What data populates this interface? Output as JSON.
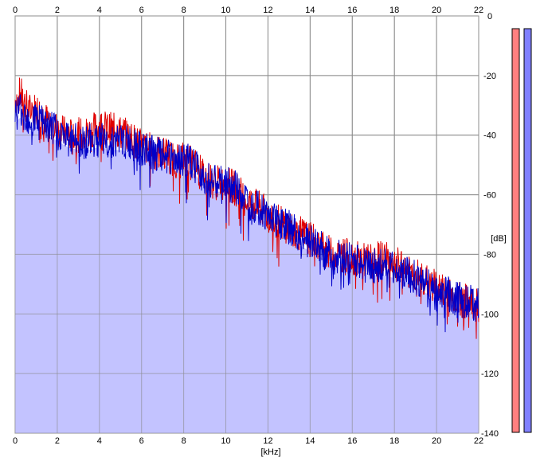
{
  "chart_data": {
    "type": "area",
    "title": "",
    "xlabel": "[kHz]",
    "ylabel": "[dB]",
    "xlim": [
      0,
      22
    ],
    "ylim": [
      -140,
      0
    ],
    "x_ticks": [
      "0",
      "2",
      "4",
      "6",
      "8",
      "10",
      "12",
      "14",
      "16",
      "18",
      "20",
      "22"
    ],
    "y_ticks": [
      "0",
      "-20",
      "-40",
      "-60",
      "-80",
      "-100",
      "-120",
      "-140"
    ],
    "grid": true,
    "series": [
      {
        "color": "#e00000",
        "x": [
          0,
          0.25,
          0.5,
          0.75,
          1,
          1.5,
          2,
          2.5,
          3,
          3.5,
          4,
          4.5,
          5,
          5.5,
          6,
          6.5,
          7,
          7.5,
          8,
          8.5,
          9,
          9.5,
          10,
          10.5,
          11,
          11.5,
          12,
          12.5,
          13,
          13.5,
          14,
          14.5,
          15,
          15.5,
          16,
          16.5,
          17,
          17.5,
          18,
          18.5,
          19,
          19.5,
          20,
          20.5,
          21,
          21.5,
          22
        ],
        "values": [
          -28,
          -26,
          -30,
          -32,
          -31,
          -35,
          -38,
          -40,
          -40,
          -39,
          -37,
          -38,
          -39,
          -41,
          -44,
          -45,
          -46,
          -48,
          -48,
          -50,
          -54,
          -56,
          -56,
          -58,
          -62,
          -64,
          -67,
          -69,
          -71,
          -73,
          -75,
          -77,
          -80,
          -80,
          -81,
          -82,
          -82,
          -81,
          -83,
          -85,
          -87,
          -89,
          -91,
          -93,
          -95,
          -96,
          -97
        ]
      },
      {
        "color": "#0000c8",
        "x": [
          0,
          0.25,
          0.5,
          0.75,
          1,
          1.5,
          2,
          2.5,
          3,
          3.5,
          4,
          4.5,
          5,
          5.5,
          6,
          6.5,
          7,
          7.5,
          8,
          8.5,
          9,
          9.5,
          10,
          10.5,
          11,
          11.5,
          12,
          12.5,
          13,
          13.5,
          14,
          14.5,
          15,
          15.5,
          16,
          16.5,
          17,
          17.5,
          18,
          18.5,
          19,
          19.5,
          20,
          20.5,
          21,
          21.5,
          22
        ],
        "values": [
          -33,
          -31,
          -33,
          -35,
          -34,
          -37,
          -39,
          -41,
          -42,
          -42,
          -41,
          -42,
          -42,
          -43,
          -45,
          -46,
          -47,
          -48,
          -48,
          -50,
          -54,
          -56,
          -56,
          -58,
          -62,
          -64,
          -67,
          -69,
          -71,
          -74,
          -76,
          -78,
          -80,
          -81,
          -82,
          -83,
          -84,
          -84,
          -85,
          -86,
          -88,
          -90,
          -92,
          -93,
          -95,
          -96,
          -97
        ]
      }
    ],
    "fill_color": "#c0c0ff",
    "meters": [
      {
        "color": "#ff8080",
        "level": 1.0
      },
      {
        "color": "#8080ff",
        "level": 1.0
      }
    ]
  }
}
